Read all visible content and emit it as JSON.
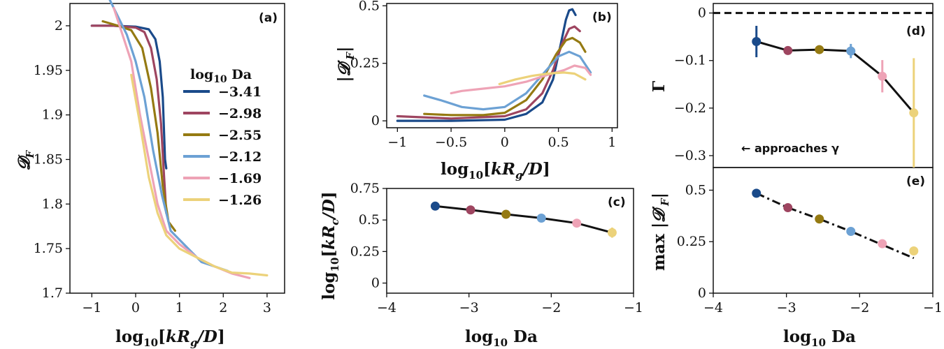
{
  "series_colors": [
    "#1a4a8a",
    "#9e4560",
    "#957a12",
    "#6ca1d4",
    "#eea3b6",
    "#ecd27a"
  ],
  "chart_data": [
    {
      "id": "a",
      "type": "line",
      "panel_label": "(a)",
      "xlabel": "log10[kRg/D]",
      "ylabel": "𝓓F",
      "xlim": [
        -1.5,
        3.4
      ],
      "ylim": [
        1.7,
        2.025
      ],
      "xticks": [
        "−1",
        "0",
        "1",
        "2",
        "3"
      ],
      "xtick_values": [
        -1,
        0,
        1,
        2,
        3
      ],
      "yticks": [
        "1.7",
        "1.75",
        "1.8",
        "1.85",
        "1.9",
        "1.95",
        "2"
      ],
      "ytick_values": [
        1.7,
        1.75,
        1.8,
        1.85,
        1.9,
        1.95,
        2.0
      ],
      "legend": {
        "title": "log10 Da",
        "placement": "center-right",
        "entries": [
          "−3.41",
          "−2.98",
          "−2.55",
          "−2.12",
          "−1.69",
          "−1.26"
        ]
      },
      "series": [
        {
          "name": "−3.41",
          "points": [
            [
              -1.0,
              2.0
            ],
            [
              -0.5,
              2.0
            ],
            [
              0.0,
              1.999
            ],
            [
              0.3,
              1.996
            ],
            [
              0.45,
              1.985
            ],
            [
              0.55,
              1.96
            ],
            [
              0.62,
              1.92
            ],
            [
              0.67,
              1.85
            ],
            [
              0.7,
              1.84
            ]
          ]
        },
        {
          "name": "−2.98",
          "points": [
            [
              -1.0,
              2.0
            ],
            [
              -0.5,
              2.0
            ],
            [
              0.0,
              1.998
            ],
            [
              0.2,
              1.993
            ],
            [
              0.35,
              1.975
            ],
            [
              0.48,
              1.94
            ],
            [
              0.58,
              1.89
            ],
            [
              0.65,
              1.83
            ],
            [
              0.7,
              1.79
            ]
          ]
        },
        {
          "name": "−2.55",
          "points": [
            [
              -0.75,
              2.005
            ],
            [
              -0.4,
              2.0
            ],
            [
              -0.1,
              1.995
            ],
            [
              0.15,
              1.975
            ],
            [
              0.35,
              1.93
            ],
            [
              0.5,
              1.88
            ],
            [
              0.62,
              1.82
            ],
            [
              0.75,
              1.78
            ],
            [
              0.9,
              1.77
            ]
          ]
        },
        {
          "name": "−2.12",
          "points": [
            [
              -0.6,
              2.03
            ],
            [
              -0.4,
              2.01
            ],
            [
              -0.2,
              1.99
            ],
            [
              0.0,
              1.96
            ],
            [
              0.2,
              1.92
            ],
            [
              0.4,
              1.86
            ],
            [
              0.6,
              1.81
            ],
            [
              0.8,
              1.77
            ],
            [
              1.0,
              1.76
            ],
            [
              1.2,
              1.75
            ],
            [
              1.5,
              1.735
            ],
            [
              1.8,
              1.73
            ],
            [
              2.1,
              1.725
            ]
          ]
        },
        {
          "name": "−1.69",
          "points": [
            [
              -0.5,
              2.02
            ],
            [
              -0.3,
              1.99
            ],
            [
              -0.1,
              1.96
            ],
            [
              0.1,
              1.9
            ],
            [
              0.3,
              1.85
            ],
            [
              0.5,
              1.8
            ],
            [
              0.7,
              1.77
            ],
            [
              1.0,
              1.755
            ],
            [
              1.4,
              1.74
            ],
            [
              1.8,
              1.73
            ],
            [
              2.2,
              1.722
            ],
            [
              2.6,
              1.717
            ]
          ]
        },
        {
          "name": "−1.26",
          "points": [
            [
              -0.1,
              1.945
            ],
            [
              0.1,
              1.89
            ],
            [
              0.3,
              1.83
            ],
            [
              0.5,
              1.79
            ],
            [
              0.7,
              1.765
            ],
            [
              1.0,
              1.75
            ],
            [
              1.4,
              1.74
            ],
            [
              1.8,
              1.73
            ],
            [
              2.2,
              1.723
            ],
            [
              2.6,
              1.722
            ],
            [
              3.0,
              1.72
            ]
          ]
        }
      ]
    },
    {
      "id": "b",
      "type": "line",
      "panel_label": "(b)",
      "xlabel": "log10[kRg/D]",
      "ylabel": "|𝓓′F|",
      "xlim": [
        -1.1,
        1.05
      ],
      "ylim": [
        -0.03,
        0.51
      ],
      "xticks": [
        "−1",
        "−0.5",
        "0",
        "0.5",
        "1"
      ],
      "xtick_values": [
        -1,
        -0.5,
        0,
        0.5,
        1
      ],
      "yticks": [
        "0",
        "0.25",
        "0.5"
      ],
      "ytick_values": [
        0,
        0.25,
        0.5
      ],
      "series": [
        {
          "name": "−3.41",
          "points": [
            [
              -1.0,
              0.0
            ],
            [
              -0.5,
              0.0
            ],
            [
              0.0,
              0.005
            ],
            [
              0.2,
              0.03
            ],
            [
              0.35,
              0.08
            ],
            [
              0.45,
              0.18
            ],
            [
              0.52,
              0.33
            ],
            [
              0.57,
              0.44
            ],
            [
              0.6,
              0.48
            ],
            [
              0.63,
              0.485
            ],
            [
              0.66,
              0.46
            ]
          ]
        },
        {
          "name": "−2.98",
          "points": [
            [
              -1.0,
              0.02
            ],
            [
              -0.5,
              0.01
            ],
            [
              0.0,
              0.02
            ],
            [
              0.2,
              0.05
            ],
            [
              0.35,
              0.12
            ],
            [
              0.45,
              0.22
            ],
            [
              0.53,
              0.33
            ],
            [
              0.6,
              0.4
            ],
            [
              0.65,
              0.41
            ],
            [
              0.7,
              0.39
            ]
          ]
        },
        {
          "name": "−2.55",
          "points": [
            [
              -0.75,
              0.03
            ],
            [
              -0.5,
              0.025
            ],
            [
              -0.2,
              0.025
            ],
            [
              0.0,
              0.035
            ],
            [
              0.2,
              0.09
            ],
            [
              0.35,
              0.18
            ],
            [
              0.48,
              0.29
            ],
            [
              0.57,
              0.35
            ],
            [
              0.63,
              0.36
            ],
            [
              0.7,
              0.34
            ],
            [
              0.75,
              0.3
            ]
          ]
        },
        {
          "name": "−2.12",
          "points": [
            [
              -0.75,
              0.11
            ],
            [
              -0.6,
              0.09
            ],
            [
              -0.4,
              0.06
            ],
            [
              -0.2,
              0.05
            ],
            [
              0.0,
              0.06
            ],
            [
              0.2,
              0.12
            ],
            [
              0.35,
              0.2
            ],
            [
              0.5,
              0.28
            ],
            [
              0.6,
              0.3
            ],
            [
              0.7,
              0.28
            ],
            [
              0.8,
              0.21
            ]
          ]
        },
        {
          "name": "−1.69",
          "points": [
            [
              -0.5,
              0.12
            ],
            [
              -0.4,
              0.13
            ],
            [
              -0.2,
              0.14
            ],
            [
              0.0,
              0.15
            ],
            [
              0.2,
              0.17
            ],
            [
              0.4,
              0.2
            ],
            [
              0.55,
              0.22
            ],
            [
              0.65,
              0.24
            ],
            [
              0.75,
              0.23
            ],
            [
              0.8,
              0.2
            ]
          ]
        },
        {
          "name": "−1.26",
          "points": [
            [
              -0.05,
              0.16
            ],
            [
              0.1,
              0.18
            ],
            [
              0.25,
              0.195
            ],
            [
              0.4,
              0.205
            ],
            [
              0.55,
              0.21
            ],
            [
              0.65,
              0.205
            ],
            [
              0.75,
              0.18
            ]
          ]
        }
      ]
    },
    {
      "id": "c",
      "type": "line",
      "panel_label": "(c)",
      "xlabel": "log10 Da",
      "ylabel": "log10[kRc/D]",
      "xlim": [
        -4,
        -1
      ],
      "ylim": [
        -0.08,
        0.75
      ],
      "xticks": [
        "−4",
        "−3",
        "−2",
        "−1"
      ],
      "xtick_values": [
        -4,
        -3,
        -2,
        -1
      ],
      "yticks": [
        "0",
        "0.25",
        "0.5",
        "0.75"
      ],
      "ytick_values": [
        0,
        0.25,
        0.5,
        0.75
      ],
      "x": [
        -3.41,
        -2.98,
        -2.55,
        -2.12,
        -1.69,
        -1.26
      ],
      "y": [
        0.61,
        0.58,
        0.545,
        0.515,
        0.475,
        0.4
      ],
      "yerr": [
        0,
        0,
        0,
        0,
        0,
        0.04
      ]
    },
    {
      "id": "d",
      "type": "line",
      "panel_label": "(d)",
      "xlabel": "",
      "ylabel": "Γ",
      "xlim": [
        -4,
        -1
      ],
      "ylim": [
        -0.325,
        0.02
      ],
      "yticks": [
        "0",
        "−0.1",
        "−0.2",
        "−0.3"
      ],
      "ytick_values": [
        0,
        -0.1,
        -0.2,
        -0.3
      ],
      "reference_line": 0,
      "annotation": "← approaches γ",
      "x": [
        -3.41,
        -2.98,
        -2.55,
        -2.12,
        -1.69,
        -1.26
      ],
      "y": [
        -0.06,
        -0.079,
        -0.077,
        -0.08,
        -0.133,
        -0.21
      ],
      "yerr": [
        0.033,
        0.008,
        0.008,
        0.015,
        0.034,
        0.115
      ]
    },
    {
      "id": "e",
      "type": "line",
      "panel_label": "(e)",
      "xlabel": "log10 Da",
      "ylabel": "max |𝓓′F|",
      "xlim": [
        -4,
        -1
      ],
      "ylim": [
        0,
        0.61
      ],
      "xticks": [
        "−4",
        "−3",
        "−2",
        "−1"
      ],
      "xtick_values": [
        -4,
        -3,
        -2,
        -1
      ],
      "yticks": [
        "0",
        "0.25",
        "0.5"
      ],
      "ytick_values": [
        0,
        0.25,
        0.5
      ],
      "x": [
        -3.41,
        -2.98,
        -2.55,
        -2.12,
        -1.69,
        -1.26
      ],
      "y": [
        0.485,
        0.415,
        0.36,
        0.3,
        0.24,
        0.205
      ],
      "trend_line": [
        [
          -3.41,
          0.485
        ],
        [
          -2.98,
          0.415
        ],
        [
          -2.55,
          0.36
        ],
        [
          -2.12,
          0.3
        ],
        [
          -1.69,
          0.235
        ],
        [
          -1.26,
          0.17
        ]
      ]
    }
  ]
}
